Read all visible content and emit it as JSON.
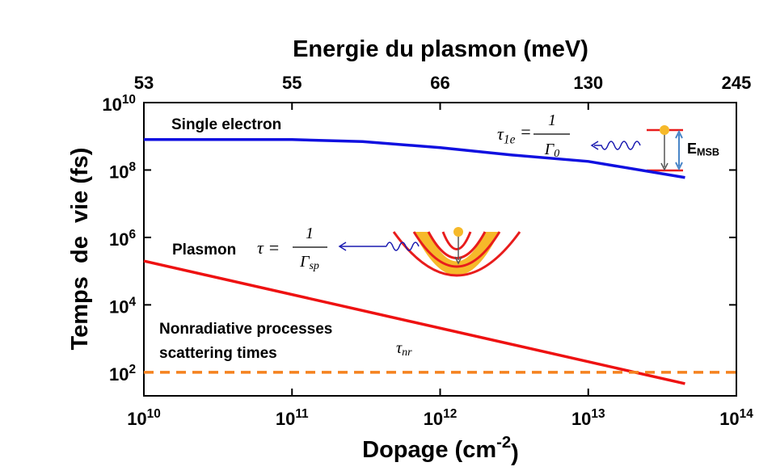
{
  "chart_data": {
    "type": "line",
    "x2label": "Energie du plasmon (meV)",
    "xlabel": "Dopage (cm^{-2})",
    "ylabel": "Temps  de  vie (fs)",
    "xscale": "log",
    "yscale": "log",
    "xlim": [
      10000000000.0,
      100000000000000.0
    ],
    "ylim": [
      20,
      10000000000.0
    ],
    "xticks": [
      {
        "value": 10000000000.0,
        "label": "10^{10}"
      },
      {
        "value": 100000000000.0,
        "label": "10^{11}"
      },
      {
        "value": 1000000000000.0,
        "label": "10^{12}"
      },
      {
        "value": 10000000000000.0,
        "label": "10^{13}"
      },
      {
        "value": 100000000000000.0,
        "label": "10^{14}"
      }
    ],
    "x2ticks": [
      53,
      55,
      66,
      130,
      245
    ],
    "yticks": [
      {
        "value": 100.0,
        "label": "10^{2}"
      },
      {
        "value": 10000.0,
        "label": "10^{4}"
      },
      {
        "value": 1000000.0,
        "label": "10^{6}"
      },
      {
        "value": 100000000.0,
        "label": "10^{8}"
      },
      {
        "value": 10000000000.0,
        "label": "10^{10}"
      }
    ],
    "series": [
      {
        "name": "Single electron",
        "color": "#1010e0",
        "linestyle": "solid",
        "x": [
          10000000000.0,
          100000000000.0,
          300000000000.0,
          1000000000000.0,
          3000000000000.0,
          10000000000000.0,
          45000000000000.0
        ],
        "values": [
          800000000.0,
          800000000.0,
          700000000.0,
          460000000.0,
          280000000.0,
          180000000.0,
          60000000.0
        ]
      },
      {
        "name": "Plasmon",
        "color": "#ee1111",
        "linestyle": "solid",
        "x": [
          10000000000.0,
          45000000000000.0
        ],
        "values": [
          200000.0,
          46
        ]
      },
      {
        "name": "Nonradiative processes",
        "color": "#f5821f",
        "linestyle": "dashed",
        "x": [
          10000000000.0,
          100000000000000.0
        ],
        "values": [
          100,
          100
        ]
      }
    ],
    "annotations": [
      "scattering times",
      "τ =",
      "1",
      "Γ_{sp}",
      "τ_{1e} =",
      "1",
      "Γ_{0}",
      "τ_{nr}",
      "E_{MSB}"
    ]
  }
}
